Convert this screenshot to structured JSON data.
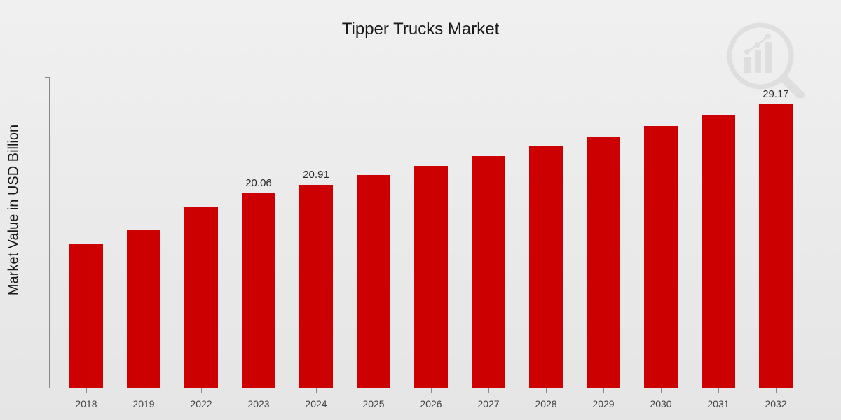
{
  "chart": {
    "type": "bar",
    "title": "Tipper Trucks Market",
    "title_fontsize": 24,
    "title_color": "#1a1a1a",
    "y_axis_label": "Market Value in USD Billion",
    "y_axis_label_fontsize": 20,
    "background_gradient": [
      "#f0f0f0",
      "#e5e5e5"
    ],
    "bar_color": "#cc0000",
    "axis_color": "#888888",
    "x_label_fontsize": 14,
    "x_label_color": "#444444",
    "value_label_fontsize": 15,
    "value_label_color": "#2a2a2a",
    "ylim": [
      0,
      32
    ],
    "bar_width_pct": 58,
    "categories": [
      "2018",
      "2019",
      "2022",
      "2023",
      "2024",
      "2025",
      "2026",
      "2027",
      "2028",
      "2029",
      "2030",
      "2031",
      "2032"
    ],
    "values": [
      14.8,
      16.3,
      18.6,
      20.06,
      20.91,
      21.9,
      22.9,
      23.9,
      24.9,
      25.9,
      27.0,
      28.1,
      29.17
    ],
    "value_labels": [
      "",
      "",
      "",
      "20.06",
      "20.91",
      "",
      "",
      "",
      "",
      "",
      "",
      "",
      "29.17"
    ]
  },
  "watermark": {
    "name": "chart-magnifier-logo",
    "opacity": 0.08,
    "color": "#333333"
  }
}
